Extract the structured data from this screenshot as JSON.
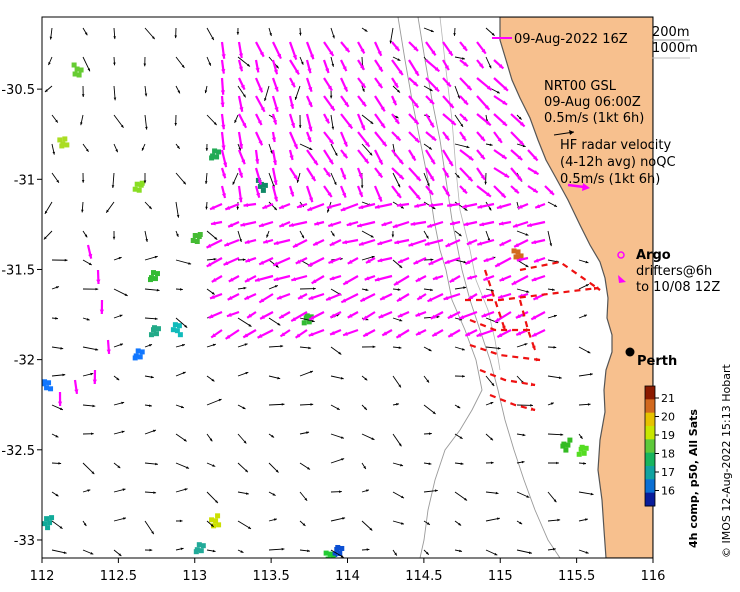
{
  "map": {
    "x_ticks": [
      "112",
      "112.5",
      "113",
      "113.5",
      "114",
      "114.5",
      "115",
      "115.5",
      "116"
    ],
    "y_ticks": [
      "-30.5",
      "-31",
      "-31.5",
      "-32",
      "-32.5",
      "-33"
    ],
    "lon_range": [
      112,
      116
    ],
    "lat_range": [
      -33.1,
      -30.1
    ],
    "land_color": "#f7c08e",
    "land_edge_color": "#555555"
  },
  "legend": {
    "product_time": "09-Aug-2022 16Z",
    "contour_200": "200m",
    "contour_1000": "1000m",
    "model_name": "NRT00 GSL",
    "model_time": "09-Aug 06:00Z",
    "model_scale": "0.5m/s (1kt 6h)",
    "hf_title": "HF radar velocity",
    "hf_avg": "(4-12h avg) noQC",
    "hf_scale": "0.5m/s (1kt 6h)",
    "argo": "Argo",
    "drifters": "drifters@6h",
    "drifters_to": "to 10/08 12Z",
    "city": "Perth",
    "hf_color": "#ff00ff",
    "drifter_color": "#ee1111",
    "model_color": "#000000",
    "argo_color": "#ff00ff"
  },
  "colorbar": {
    "title": "4h comp, p50, All Sats",
    "ticks": [
      "21",
      "20",
      "19",
      "18",
      "17",
      "16"
    ],
    "colors": [
      "#8b1a00",
      "#d2691e",
      "#e6c200",
      "#c8e600",
      "#5ec93a",
      "#18b55e",
      "#11a3a0",
      "#0b6fd3",
      "#091c9a"
    ]
  },
  "credit": "© IMOS 12-Aug-2022 15:13 Hobart",
  "sst_patches": [
    {
      "lon": 112.22,
      "lat": -30.38,
      "c": "#66cc33"
    },
    {
      "lon": 112.12,
      "lat": -30.79,
      "c": "#aadd22"
    },
    {
      "lon": 112.62,
      "lat": -31.03,
      "c": "#88dd22"
    },
    {
      "lon": 113.12,
      "lat": -30.84,
      "c": "#22aa55"
    },
    {
      "lon": 113.42,
      "lat": -31.02,
      "c": "#118866"
    },
    {
      "lon": 113.0,
      "lat": -31.32,
      "c": "#44bb33"
    },
    {
      "lon": 112.72,
      "lat": -31.52,
      "c": "#33bb33"
    },
    {
      "lon": 112.72,
      "lat": -31.82,
      "c": "#22aa88"
    },
    {
      "lon": 112.87,
      "lat": -31.82,
      "c": "#11bbbb"
    },
    {
      "lon": 112.62,
      "lat": -31.96,
      "c": "#1177ff"
    },
    {
      "lon": 113.72,
      "lat": -31.76,
      "c": "#33bb33"
    },
    {
      "lon": 113.12,
      "lat": -32.88,
      "c": "#cce000"
    },
    {
      "lon": 113.02,
      "lat": -33.04,
      "c": "#22aa99"
    },
    {
      "lon": 113.92,
      "lat": -33.05,
      "c": "#0b4fd3"
    },
    {
      "lon": 113.87,
      "lat": -33.07,
      "c": "#22cc33"
    },
    {
      "lon": 115.42,
      "lat": -32.46,
      "c": "#33bb22"
    },
    {
      "lon": 115.52,
      "lat": -32.5,
      "c": "#55dd22"
    },
    {
      "lon": 115.1,
      "lat": -31.4,
      "c": "#d26a1e"
    },
    {
      "lon": 112.02,
      "lat": -32.12,
      "c": "#1177ff"
    },
    {
      "lon": 112.02,
      "lat": -32.89,
      "c": "#11aa99"
    }
  ]
}
